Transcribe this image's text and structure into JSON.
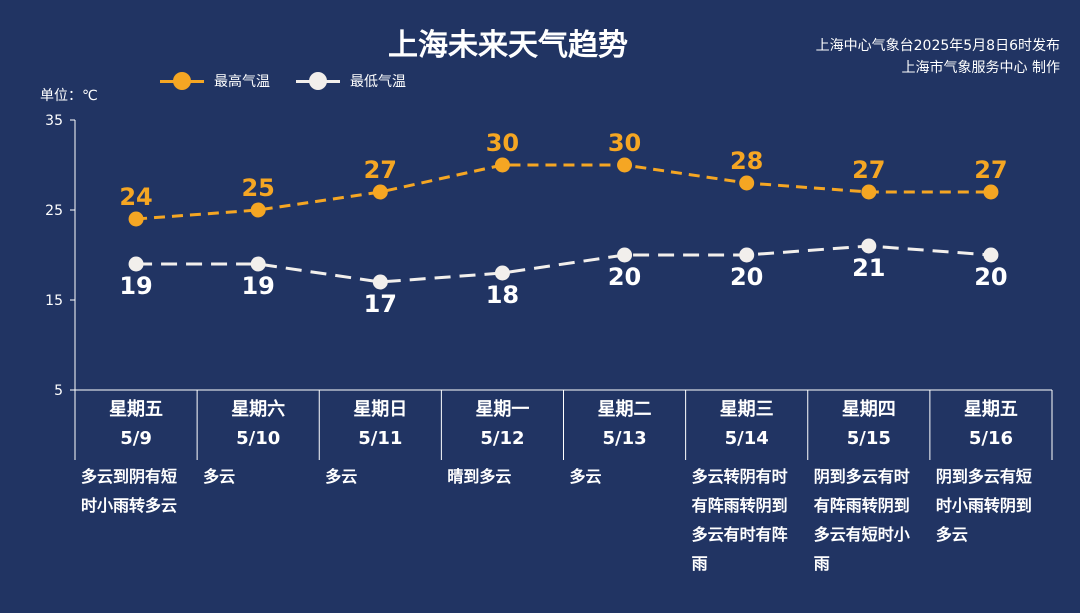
{
  "header": {
    "title": "上海未来天气趋势",
    "source_line1": "上海中心气象台2025年5月8日6时发布",
    "source_line2": "上海市气象服务中心 制作",
    "unit": "单位：℃"
  },
  "colors": {
    "background": "#213463",
    "high": "#f5a623",
    "low": "#f2efec",
    "axis": "#ffffff"
  },
  "chart_data": {
    "type": "line",
    "categories": [
      "5/9",
      "5/10",
      "5/11",
      "5/12",
      "5/13",
      "5/14",
      "5/15",
      "5/16"
    ],
    "series": [
      {
        "name": "最高气温",
        "values": [
          24,
          25,
          27,
          30,
          30,
          28,
          27,
          27
        ],
        "color": "#f5a623",
        "style": "dashed",
        "marker": "circle"
      },
      {
        "name": "最低气温",
        "values": [
          19,
          19,
          17,
          18,
          20,
          20,
          21,
          20
        ],
        "color": "#f2efec",
        "style": "dashed",
        "marker": "circle"
      }
    ],
    "ylim": [
      5,
      35
    ],
    "yticks": [
      "5",
      "15",
      "25",
      "35"
    ],
    "data_labels": true,
    "legend": "top-left",
    "grid": false
  },
  "days": [
    {
      "weekday": "星期五",
      "date": "5/9",
      "weather": "多云到阴有短时小雨转多云"
    },
    {
      "weekday": "星期六",
      "date": "5/10",
      "weather": "多云"
    },
    {
      "weekday": "星期日",
      "date": "5/11",
      "weather": "多云"
    },
    {
      "weekday": "星期一",
      "date": "5/12",
      "weather": "晴到多云"
    },
    {
      "weekday": "星期二",
      "date": "5/13",
      "weather": "多云"
    },
    {
      "weekday": "星期三",
      "date": "5/14",
      "weather": "多云转阴有时有阵雨转阴到多云有时有阵雨"
    },
    {
      "weekday": "星期四",
      "date": "5/15",
      "weather": "阴到多云有时有阵雨转阴到多云有短时小雨"
    },
    {
      "weekday": "星期五",
      "date": "5/16",
      "weather": "阴到多云有短时小雨转阴到多云"
    }
  ]
}
